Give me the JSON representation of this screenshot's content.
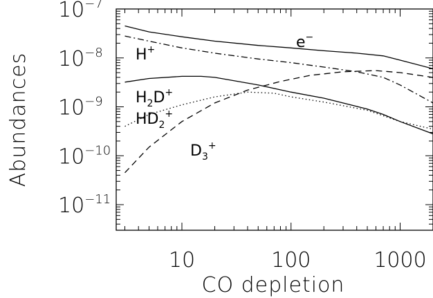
{
  "chart_data": {
    "type": "line",
    "xlabel": "CO depletion",
    "ylabel": "Abundances",
    "xscale": "log",
    "yscale": "log",
    "xlim": [
      2.5,
      2000
    ],
    "ylim": [
      3e-12,
      1e-07
    ],
    "x_ticks": [
      {
        "value": 10,
        "label": "10"
      },
      {
        "value": 100,
        "label": "100"
      },
      {
        "value": 1000,
        "label": "1000"
      }
    ],
    "y_ticks": [
      {
        "value": 1e-07,
        "base": "10",
        "exp": "−7"
      },
      {
        "value": 1e-08,
        "base": "10",
        "exp": "−8"
      },
      {
        "value": 1e-09,
        "base": "10",
        "exp": "−9"
      },
      {
        "value": 1e-10,
        "base": "10",
        "exp": "−10"
      },
      {
        "value": 1e-11,
        "base": "10",
        "exp": "−11"
      }
    ],
    "series": [
      {
        "name": "e⁻",
        "label": {
          "base": "e",
          "sup": "−",
          "sub": ""
        },
        "dash": "solid",
        "x": [
          3,
          5,
          10,
          20,
          50,
          100,
          200,
          400,
          700,
          1000,
          2000
        ],
        "y": [
          4.5e-08,
          3.4e-08,
          2.7e-08,
          2.2e-08,
          1.8e-08,
          1.6e-08,
          1.4e-08,
          1.25e-08,
          1.1e-08,
          9e-09,
          6e-09
        ]
      },
      {
        "name": "H⁺",
        "label": {
          "base": "H",
          "sup": "+",
          "sub": ""
        },
        "dash": "dashdot",
        "x": [
          3,
          5,
          10,
          20,
          50,
          100,
          200,
          400,
          700,
          1000,
          2000
        ],
        "y": [
          2.8e-08,
          2.2e-08,
          1.6e-08,
          1.25e-08,
          9.5e-09,
          8e-09,
          6.5e-09,
          5.2e-09,
          4e-09,
          2.8e-09,
          1.2e-09
        ]
      },
      {
        "name": "H₂D⁺",
        "label": {
          "base": "H",
          "sup": "+",
          "sub": "2",
          "base2": "D"
        },
        "dash": "solid",
        "x": [
          3,
          5,
          10,
          15,
          20,
          50,
          100,
          200,
          500,
          700,
          1000,
          2000
        ],
        "y": [
          3.2e-09,
          3.8e-09,
          4.2e-09,
          4.2e-09,
          4e-09,
          2.8e-09,
          2e-09,
          1.5e-09,
          9e-10,
          7e-10,
          5e-10,
          2.8e-10
        ]
      },
      {
        "name": "HD₂⁺",
        "label": {
          "base": "HD",
          "sup": "+",
          "sub": "2"
        },
        "dash": "dotted",
        "x": [
          3,
          5,
          10,
          20,
          40,
          70,
          100,
          200,
          500,
          1000,
          2000
        ],
        "y": [
          4e-10,
          7e-10,
          1.1e-09,
          1.6e-09,
          2e-09,
          1.9e-09,
          1.6e-09,
          1.25e-09,
          8.5e-10,
          5e-10,
          3.5e-10
        ]
      },
      {
        "name": "D₃⁺",
        "label": {
          "base": "D",
          "sup": "+",
          "sub": "3"
        },
        "dash": "dashed",
        "x": [
          3,
          5,
          10,
          20,
          40,
          80,
          150,
          300,
          600,
          1000,
          2000
        ],
        "y": [
          4.5e-11,
          1.5e-10,
          5e-10,
          1.2e-09,
          2.2e-09,
          3.3e-09,
          4.4e-09,
          5.2e-09,
          5.5e-09,
          5e-09,
          4e-09
        ]
      }
    ],
    "grid": false,
    "legend": "none"
  }
}
